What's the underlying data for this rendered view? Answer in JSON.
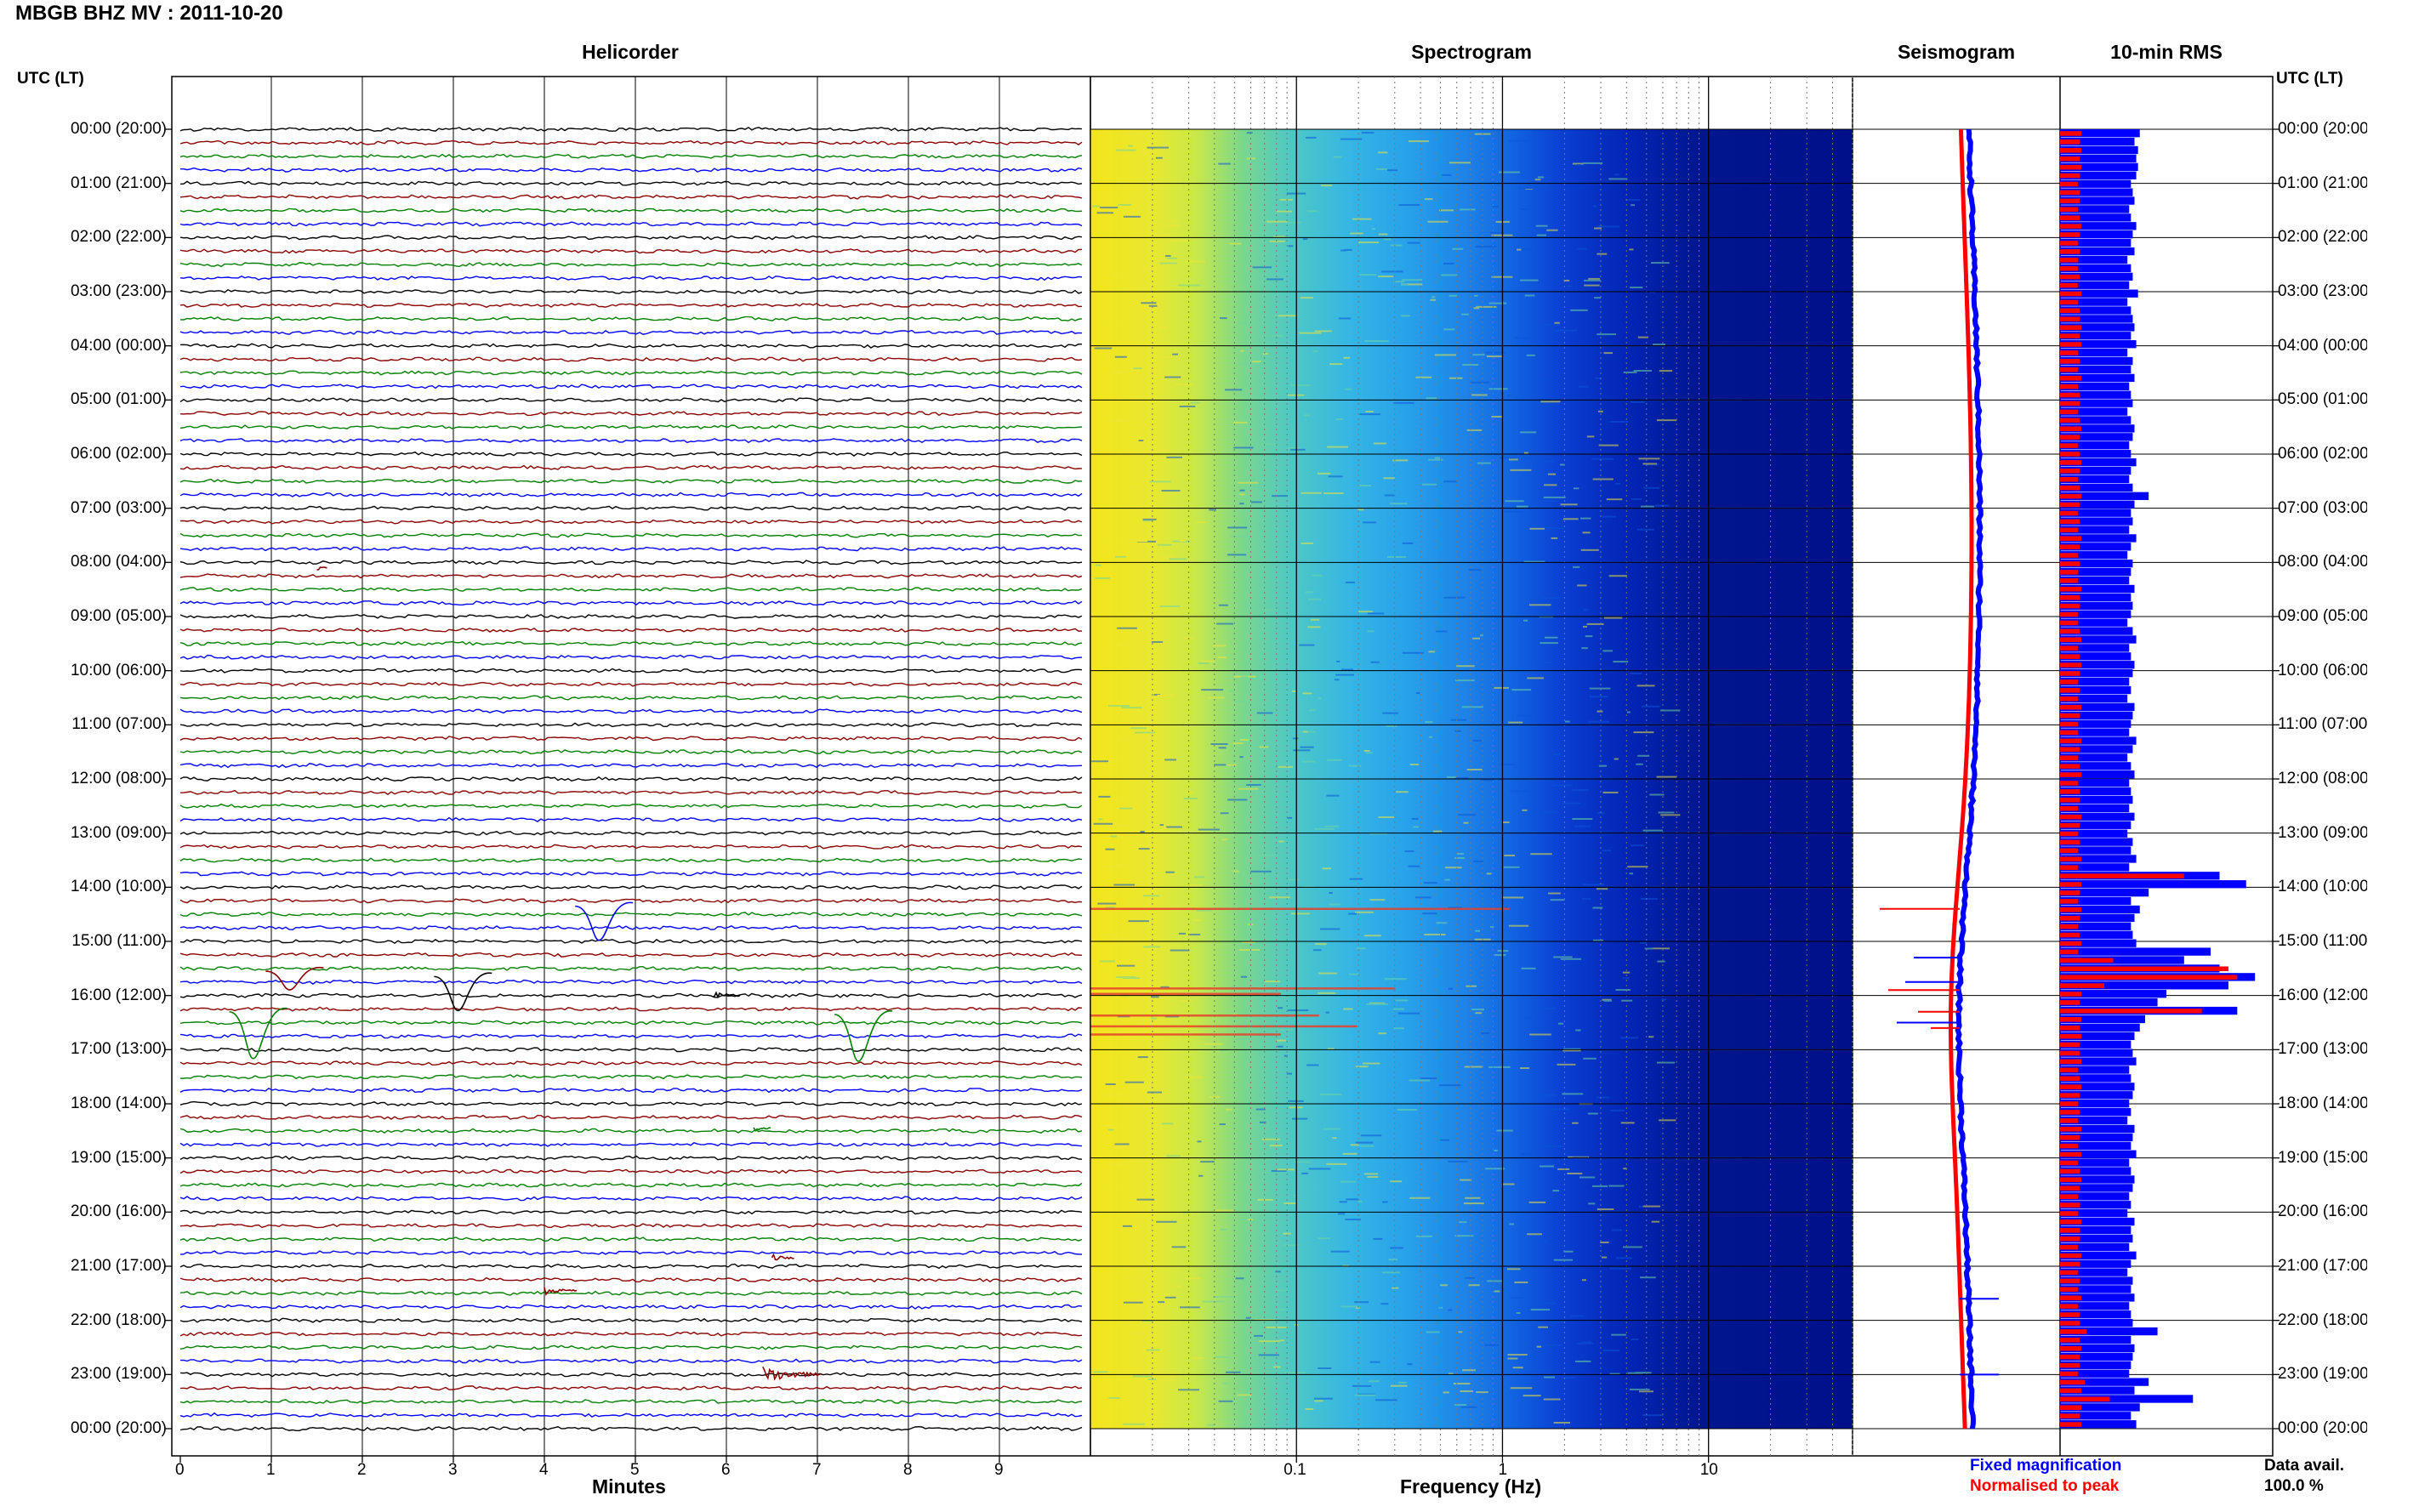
{
  "header": {
    "title": "MBGB BHZ MV : 2011-10-20"
  },
  "panels": {
    "helicorder": "Helicorder",
    "spectrogram": "Spectrogram",
    "seismogram": "Seismogram",
    "rms": "10-min RMS"
  },
  "axes": {
    "time_header_left": "UTC (LT)",
    "time_header_right": "UTC (LT)",
    "minutes_label": "Minutes",
    "frequency_label": "Frequency (Hz)"
  },
  "legend": {
    "fixed": "Fixed magnification",
    "normalised": "Normalised to peak",
    "fixed_color": "#0000ff",
    "normalised_color": "#ff0000"
  },
  "data_avail": {
    "label": "Data avail.",
    "value": "100.0 %"
  },
  "chart_data": {
    "type": "helicorder",
    "time_labels": [
      "00:00 (20:00)",
      "01:00 (21:00)",
      "02:00 (22:00)",
      "03:00 (23:00)",
      "04:00 (00:00)",
      "05:00 (01:00)",
      "06:00 (02:00)",
      "07:00 (03:00)",
      "08:00 (04:00)",
      "09:00 (05:00)",
      "10:00 (06:00)",
      "11:00 (07:00)",
      "12:00 (08:00)",
      "13:00 (09:00)",
      "14:00 (10:00)",
      "15:00 (11:00)",
      "16:00 (12:00)",
      "17:00 (13:00)",
      "18:00 (14:00)",
      "19:00 (15:00)",
      "20:00 (16:00)",
      "21:00 (17:00)",
      "22:00 (18:00)",
      "23:00 (19:00)",
      "00:00 (20:00)"
    ],
    "minutes_ticks": [
      0,
      1,
      2,
      3,
      4,
      5,
      6,
      7,
      8,
      9
    ],
    "minutes_range": [
      0,
      10
    ],
    "frequency_ticks": [
      {
        "value": 0.1,
        "label": "0.1"
      },
      {
        "value": 1,
        "label": "1"
      },
      {
        "value": 10,
        "label": "10"
      }
    ],
    "frequency_range": [
      0.01,
      50
    ],
    "frequency_scale": "log",
    "trace_colors": [
      "#000000",
      "#8b0000",
      "#008000",
      "#0000ff"
    ],
    "rms_fixed": [
      0.45,
      0.42,
      0.44,
      0.43,
      0.44,
      0.43,
      0.4,
      0.41,
      0.42,
      0.39,
      0.4,
      0.43,
      0.41,
      0.4,
      0.42,
      0.38,
      0.4,
      0.41,
      0.39,
      0.44,
      0.38,
      0.4,
      0.41,
      0.42,
      0.4,
      0.43,
      0.38,
      0.41,
      0.4,
      0.42,
      0.39,
      0.4,
      0.41,
      0.38,
      0.4,
      0.42,
      0.41,
      0.39,
      0.4,
      0.43,
      0.4,
      0.39,
      0.41,
      0.5,
      0.42,
      0.4,
      0.41,
      0.39,
      0.43,
      0.4,
      0.38,
      0.41,
      0.4,
      0.39,
      0.42,
      0.4,
      0.41,
      0.4,
      0.38,
      0.41,
      0.43,
      0.39,
      0.4,
      0.42,
      0.41,
      0.39,
      0.4,
      0.38,
      0.42,
      0.41,
      0.4,
      0.39,
      0.43,
      0.41,
      0.38,
      0.4,
      0.42,
      0.39,
      0.4,
      0.41,
      0.39,
      0.42,
      0.4,
      0.38,
      0.41,
      0.4,
      0.43,
      0.39,
      0.9,
      1.05,
      0.5,
      0.4,
      0.45,
      0.42,
      0.4,
      0.41,
      0.43,
      0.85,
      0.7,
      0.9,
      1.1,
      0.95,
      0.6,
      0.55,
      1.0,
      0.48,
      0.45,
      0.42,
      0.4,
      0.41,
      0.43,
      0.39,
      0.4,
      0.42,
      0.41,
      0.39,
      0.4,
      0.38,
      0.42,
      0.41,
      0.4,
      0.43,
      0.39,
      0.4,
      0.42,
      0.41,
      0.39,
      0.4,
      0.38,
      0.42,
      0.4,
      0.41,
      0.39,
      0.43,
      0.4,
      0.38,
      0.41,
      0.4,
      0.42,
      0.39,
      0.4,
      0.41,
      0.55,
      0.4,
      0.42,
      0.41,
      0.4,
      0.39,
      0.5,
      0.42,
      0.75,
      0.45,
      0.4,
      0.43
    ],
    "rms_normalised": [
      0.12,
      0.11,
      0.12,
      0.11,
      0.12,
      0.11,
      0.1,
      0.11,
      0.11,
      0.1,
      0.11,
      0.12,
      0.11,
      0.1,
      0.11,
      0.1,
      0.1,
      0.11,
      0.1,
      0.12,
      0.1,
      0.11,
      0.11,
      0.12,
      0.11,
      0.12,
      0.1,
      0.11,
      0.1,
      0.12,
      0.1,
      0.11,
      0.11,
      0.1,
      0.11,
      0.12,
      0.11,
      0.1,
      0.11,
      0.12,
      0.11,
      0.1,
      0.11,
      0.12,
      0.11,
      0.1,
      0.11,
      0.1,
      0.12,
      0.11,
      0.1,
      0.11,
      0.1,
      0.1,
      0.12,
      0.11,
      0.11,
      0.1,
      0.1,
      0.11,
      0.12,
      0.1,
      0.11,
      0.12,
      0.11,
      0.1,
      0.11,
      0.1,
      0.12,
      0.11,
      0.1,
      0.1,
      0.12,
      0.11,
      0.1,
      0.11,
      0.12,
      0.1,
      0.11,
      0.11,
      0.1,
      0.12,
      0.11,
      0.1,
      0.11,
      0.1,
      0.12,
      0.1,
      0.7,
      0.12,
      0.11,
      0.1,
      0.12,
      0.11,
      0.1,
      0.11,
      0.12,
      0.1,
      0.3,
      0.95,
      1.0,
      0.25,
      0.12,
      0.11,
      0.8,
      0.12,
      0.11,
      0.12,
      0.11,
      0.11,
      0.12,
      0.1,
      0.11,
      0.12,
      0.11,
      0.1,
      0.11,
      0.1,
      0.12,
      0.11,
      0.1,
      0.12,
      0.1,
      0.11,
      0.12,
      0.11,
      0.1,
      0.11,
      0.1,
      0.12,
      0.11,
      0.11,
      0.1,
      0.12,
      0.11,
      0.1,
      0.11,
      0.1,
      0.12,
      0.1,
      0.11,
      0.11,
      0.15,
      0.11,
      0.12,
      0.11,
      0.11,
      0.1,
      0.14,
      0.12,
      0.28,
      0.12,
      0.11,
      0.12
    ]
  }
}
